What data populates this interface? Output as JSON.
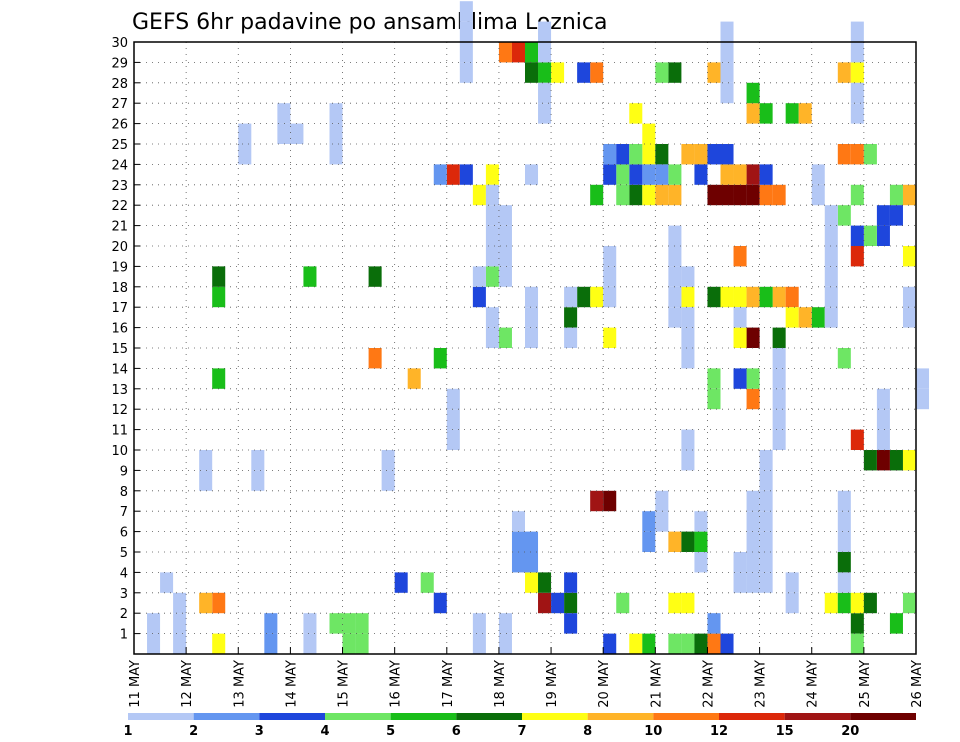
{
  "chart_data": {
    "type": "heatmap",
    "title": "GEFS 6hr padavine po ansamblima Loznica",
    "x_ticks": [
      "11 MAY",
      "12 MAY",
      "13 MAY",
      "14 MAY",
      "15 MAY",
      "16 MAY",
      "17 MAY",
      "18 MAY",
      "19 MAY",
      "20 MAY",
      "21 MAY",
      "22 MAY",
      "23 MAY",
      "24 MAY",
      "25 MAY",
      "26 MAY"
    ],
    "y_ticks": [
      "1",
      "2",
      "3",
      "4",
      "5",
      "6",
      "7",
      "8",
      "9",
      "10",
      "11",
      "12",
      "13",
      "14",
      "15",
      "16",
      "17",
      "18",
      "19",
      "20",
      "21",
      "22",
      "23",
      "24",
      "25",
      "26",
      "27",
      "28",
      "29",
      "30"
    ],
    "xlim": [
      0,
      60
    ],
    "ylim": [
      0,
      30
    ],
    "grid": true,
    "colorbar": {
      "labels": [
        "1",
        "2",
        "3",
        "4",
        "5",
        "6",
        "7",
        "8",
        "10",
        "12",
        "15",
        "20"
      ],
      "colors": [
        "#b4c8f5",
        "#6496f0",
        "#1e46dc",
        "#6ee664",
        "#19be19",
        "#0a6e0a",
        "#ffff14",
        "#ffb428",
        "#ff7814",
        "#dc280a",
        "#a01414",
        "#6e0000"
      ]
    },
    "cells": [
      [
        1,
        0,
        2,
        0
      ],
      [
        2,
        3,
        1,
        0
      ],
      [
        3,
        0,
        2,
        0
      ],
      [
        3,
        1,
        2,
        0
      ],
      [
        5,
        8,
        2,
        0
      ],
      [
        8,
        24,
        2,
        0
      ],
      [
        9,
        8,
        2,
        0
      ],
      [
        10,
        0,
        2,
        1
      ],
      [
        11,
        25,
        2,
        0
      ],
      [
        12,
        25,
        1,
        0
      ],
      [
        13,
        0,
        2,
        0
      ],
      [
        15,
        24,
        3,
        0
      ],
      [
        19,
        8,
        2,
        0
      ],
      [
        24,
        10,
        3,
        0
      ],
      [
        25,
        28,
        4,
        0
      ],
      [
        26,
        0,
        2,
        0
      ],
      [
        26,
        17,
        2,
        0
      ],
      [
        27,
        15,
        2,
        0
      ],
      [
        27,
        19,
        4,
        0
      ],
      [
        28,
        0,
        2,
        0
      ],
      [
        28,
        18,
        4,
        0
      ],
      [
        29,
        4,
        2,
        1
      ],
      [
        29,
        6,
        1,
        0
      ],
      [
        30,
        4,
        2,
        1
      ],
      [
        30,
        15,
        3,
        0
      ],
      [
        30,
        23,
        1,
        0
      ],
      [
        31,
        26,
        5,
        0
      ],
      [
        33,
        15,
        3,
        0
      ],
      [
        36,
        17,
        3,
        0
      ],
      [
        39,
        5,
        2,
        1
      ],
      [
        40,
        6,
        2,
        0
      ],
      [
        41,
        16,
        5,
        0
      ],
      [
        42,
        9,
        2,
        0
      ],
      [
        42,
        14,
        5,
        0
      ],
      [
        43,
        4,
        3,
        0
      ],
      [
        44,
        0,
        2,
        1
      ],
      [
        45,
        27,
        4,
        0
      ],
      [
        46,
        3,
        2,
        0
      ],
      [
        46,
        15,
        3,
        0
      ],
      [
        47,
        3,
        5,
        0
      ],
      [
        48,
        3,
        7,
        0
      ],
      [
        49,
        10,
        5,
        0
      ],
      [
        50,
        2,
        2,
        0
      ],
      [
        52,
        22,
        2,
        0
      ],
      [
        53,
        20,
        2,
        0
      ],
      [
        53,
        16,
        5,
        0
      ],
      [
        54,
        3,
        5,
        0
      ],
      [
        55,
        26,
        5,
        0
      ],
      [
        57,
        10,
        3,
        0
      ],
      [
        59,
        16,
        2,
        0
      ],
      [
        60,
        12,
        2,
        0
      ]
    ],
    "hotspots": [
      {
        "col": 44,
        "row": 22,
        "v": 11
      },
      {
        "col": 45,
        "row": 22,
        "v": 11
      },
      {
        "col": 46,
        "row": 22,
        "v": 11
      },
      {
        "col": 47,
        "row": 22,
        "v": 11
      },
      {
        "col": 47,
        "row": 23,
        "v": 10
      },
      {
        "col": 46,
        "row": 23,
        "v": 7
      },
      {
        "col": 42,
        "row": 24,
        "v": 7
      },
      {
        "col": 48,
        "row": 22,
        "v": 8
      },
      {
        "col": 48,
        "row": 23,
        "v": 2
      },
      {
        "col": 47,
        "row": 15,
        "v": 11
      },
      {
        "col": 46,
        "row": 15,
        "v": 6
      },
      {
        "col": 49,
        "row": 17,
        "v": 7
      },
      {
        "col": 50,
        "row": 17,
        "v": 8
      },
      {
        "col": 35,
        "row": 7,
        "v": 10
      },
      {
        "col": 36,
        "row": 7,
        "v": 11
      },
      {
        "col": 31,
        "row": 2,
        "v": 10
      },
      {
        "col": 54,
        "row": 24,
        "v": 8
      },
      {
        "col": 55,
        "row": 24,
        "v": 8
      },
      {
        "col": 55,
        "row": 10,
        "v": 9
      },
      {
        "col": 57,
        "row": 9,
        "v": 11
      },
      {
        "col": 24,
        "row": 23,
        "v": 9
      },
      {
        "col": 25,
        "row": 23,
        "v": 2
      },
      {
        "col": 23,
        "row": 23,
        "v": 1
      },
      {
        "col": 27,
        "row": 23,
        "v": 6
      },
      {
        "col": 26,
        "row": 22,
        "v": 6
      },
      {
        "col": 28,
        "row": 29,
        "v": 8
      },
      {
        "col": 29,
        "row": 29,
        "v": 9
      },
      {
        "col": 30,
        "row": 29,
        "v": 4
      },
      {
        "col": 35,
        "row": 28,
        "v": 8
      },
      {
        "col": 34,
        "row": 28,
        "v": 2
      },
      {
        "col": 41,
        "row": 28,
        "v": 5
      },
      {
        "col": 40,
        "row": 28,
        "v": 3
      },
      {
        "col": 44,
        "row": 28,
        "v": 7
      },
      {
        "col": 32,
        "row": 28,
        "v": 6
      },
      {
        "col": 31,
        "row": 28,
        "v": 4
      },
      {
        "col": 30,
        "row": 28,
        "v": 5
      },
      {
        "col": 54,
        "row": 28,
        "v": 7
      },
      {
        "col": 55,
        "row": 28,
        "v": 6
      },
      {
        "col": 21,
        "row": 13,
        "v": 7
      },
      {
        "col": 47,
        "row": 12,
        "v": 8
      },
      {
        "col": 48,
        "row": 26,
        "v": 4
      },
      {
        "col": 47,
        "row": 26,
        "v": 7
      },
      {
        "col": 47,
        "row": 27,
        "v": 4
      },
      {
        "col": 50,
        "row": 26,
        "v": 4
      },
      {
        "col": 51,
        "row": 26,
        "v": 7
      },
      {
        "col": 39,
        "row": 24,
        "v": 6
      },
      {
        "col": 40,
        "row": 24,
        "v": 5
      },
      {
        "col": 46,
        "row": 19,
        "v": 8
      },
      {
        "col": 55,
        "row": 19,
        "v": 9
      },
      {
        "col": 59,
        "row": 19,
        "v": 6
      },
      {
        "col": 41,
        "row": 5,
        "v": 7
      },
      {
        "col": 42,
        "row": 5,
        "v": 5
      },
      {
        "col": 43,
        "row": 5,
        "v": 4
      },
      {
        "col": 56,
        "row": 9,
        "v": 5
      },
      {
        "col": 58,
        "row": 9,
        "v": 5
      },
      {
        "col": 59,
        "row": 9,
        "v": 6
      },
      {
        "col": 37,
        "row": 2,
        "v": 3
      },
      {
        "col": 53,
        "row": 2,
        "v": 6
      },
      {
        "col": 54,
        "row": 2,
        "v": 4
      },
      {
        "col": 52,
        "row": 16,
        "v": 4
      },
      {
        "col": 50,
        "row": 16,
        "v": 6
      },
      {
        "col": 51,
        "row": 16,
        "v": 7
      },
      {
        "col": 42,
        "row": 17,
        "v": 6
      },
      {
        "col": 44,
        "row": 17,
        "v": 5
      },
      {
        "col": 45,
        "row": 17,
        "v": 6
      },
      {
        "col": 46,
        "row": 17,
        "v": 6
      },
      {
        "col": 47,
        "row": 17,
        "v": 7
      },
      {
        "col": 48,
        "row": 17,
        "v": 4
      },
      {
        "col": 49,
        "row": 15,
        "v": 5
      },
      {
        "col": 35,
        "row": 17,
        "v": 6
      },
      {
        "col": 34,
        "row": 17,
        "v": 5
      },
      {
        "col": 36,
        "row": 15,
        "v": 6
      },
      {
        "col": 38,
        "row": 22,
        "v": 5
      },
      {
        "col": 39,
        "row": 22,
        "v": 6
      },
      {
        "col": 35,
        "row": 22,
        "v": 4
      },
      {
        "col": 37,
        "row": 22,
        "v": 3
      },
      {
        "col": 40,
        "row": 22,
        "v": 7
      },
      {
        "col": 41,
        "row": 22,
        "v": 7
      },
      {
        "col": 45,
        "row": 23,
        "v": 7
      },
      {
        "col": 43,
        "row": 24,
        "v": 7
      },
      {
        "col": 39,
        "row": 25,
        "v": 6
      },
      {
        "col": 38,
        "row": 26,
        "v": 6
      },
      {
        "col": 56,
        "row": 24,
        "v": 3
      },
      {
        "col": 55,
        "row": 22,
        "v": 3
      },
      {
        "col": 54,
        "row": 21,
        "v": 3
      },
      {
        "col": 58,
        "row": 22,
        "v": 3
      },
      {
        "col": 59,
        "row": 22,
        "v": 7
      },
      {
        "col": 49,
        "row": 22,
        "v": 8
      },
      {
        "col": 6,
        "row": 17,
        "v": 4
      },
      {
        "col": 6,
        "row": 18,
        "v": 5
      },
      {
        "col": 6,
        "row": 13,
        "v": 4
      },
      {
        "col": 6,
        "row": 2,
        "v": 8
      },
      {
        "col": 5,
        "row": 2,
        "v": 7
      },
      {
        "col": 6,
        "row": 0,
        "v": 6
      },
      {
        "col": 13,
        "row": 18,
        "v": 4
      },
      {
        "col": 18,
        "row": 18,
        "v": 5
      },
      {
        "col": 18,
        "row": 14,
        "v": 8
      },
      {
        "col": 23,
        "row": 14,
        "v": 4
      },
      {
        "col": 20,
        "row": 3,
        "v": 2
      },
      {
        "col": 23,
        "row": 2,
        "v": 2
      },
      {
        "col": 22,
        "row": 3,
        "v": 3
      },
      {
        "col": 30,
        "row": 3,
        "v": 6
      },
      {
        "col": 33,
        "row": 2,
        "v": 5
      },
      {
        "col": 32,
        "row": 2,
        "v": 2
      },
      {
        "col": 31,
        "row": 3,
        "v": 5
      },
      {
        "col": 33,
        "row": 3,
        "v": 2
      },
      {
        "col": 41,
        "row": 2,
        "v": 6
      },
      {
        "col": 42,
        "row": 2,
        "v": 6
      },
      {
        "col": 47,
        "row": 13,
        "v": 3
      },
      {
        "col": 46,
        "row": 13,
        "v": 2
      },
      {
        "col": 44,
        "row": 12,
        "v": 3
      },
      {
        "col": 44,
        "row": 13,
        "v": 3
      },
      {
        "col": 54,
        "row": 4,
        "v": 5
      },
      {
        "col": 55,
        "row": 1,
        "v": 5
      },
      {
        "col": 55,
        "row": 2,
        "v": 6
      },
      {
        "col": 56,
        "row": 2,
        "v": 5
      },
      {
        "col": 58,
        "row": 1,
        "v": 4
      },
      {
        "col": 59,
        "row": 2,
        "v": 3
      },
      {
        "col": 54,
        "row": 14,
        "v": 3
      },
      {
        "col": 33,
        "row": 1,
        "v": 2
      },
      {
        "col": 26,
        "row": 17,
        "v": 2
      },
      {
        "col": 28,
        "row": 15,
        "v": 3
      },
      {
        "col": 33,
        "row": 16,
        "v": 5
      },
      {
        "col": 27,
        "row": 18,
        "v": 3
      },
      {
        "col": 16,
        "row": 1,
        "v": 3
      },
      {
        "col": 16,
        "row": 0,
        "v": 3
      },
      {
        "col": 17,
        "row": 1,
        "v": 3
      },
      {
        "col": 17,
        "row": 0,
        "v": 3
      },
      {
        "col": 15,
        "row": 1,
        "v": 3
      },
      {
        "col": 55,
        "row": 0,
        "v": 3
      },
      {
        "col": 36,
        "row": 0,
        "v": 2
      },
      {
        "col": 38,
        "row": 0,
        "v": 6
      },
      {
        "col": 39,
        "row": 0,
        "v": 4
      },
      {
        "col": 41,
        "row": 0,
        "v": 3
      },
      {
        "col": 42,
        "row": 0,
        "v": 3
      },
      {
        "col": 43,
        "row": 0,
        "v": 5
      },
      {
        "col": 44,
        "row": 0,
        "v": 8
      },
      {
        "col": 45,
        "row": 0,
        "v": 2
      },
      {
        "col": 57,
        "row": 20,
        "v": 2
      },
      {
        "col": 56,
        "row": 20,
        "v": 3
      },
      {
        "col": 55,
        "row": 20,
        "v": 2
      },
      {
        "col": 57,
        "row": 21,
        "v": 2
      },
      {
        "col": 58,
        "row": 21,
        "v": 2
      },
      {
        "col": 41,
        "row": 23,
        "v": 3
      },
      {
        "col": 43,
        "row": 23,
        "v": 2
      },
      {
        "col": 44,
        "row": 24,
        "v": 2
      },
      {
        "col": 45,
        "row": 24,
        "v": 2
      },
      {
        "col": 40,
        "row": 23,
        "v": 1
      },
      {
        "col": 39,
        "row": 23,
        "v": 1
      },
      {
        "col": 38,
        "row": 23,
        "v": 2
      },
      {
        "col": 37,
        "row": 23,
        "v": 3
      },
      {
        "col": 36,
        "row": 23,
        "v": 2
      },
      {
        "col": 36,
        "row": 24,
        "v": 1
      },
      {
        "col": 37,
        "row": 24,
        "v": 2
      },
      {
        "col": 38,
        "row": 24,
        "v": 3
      }
    ]
  }
}
